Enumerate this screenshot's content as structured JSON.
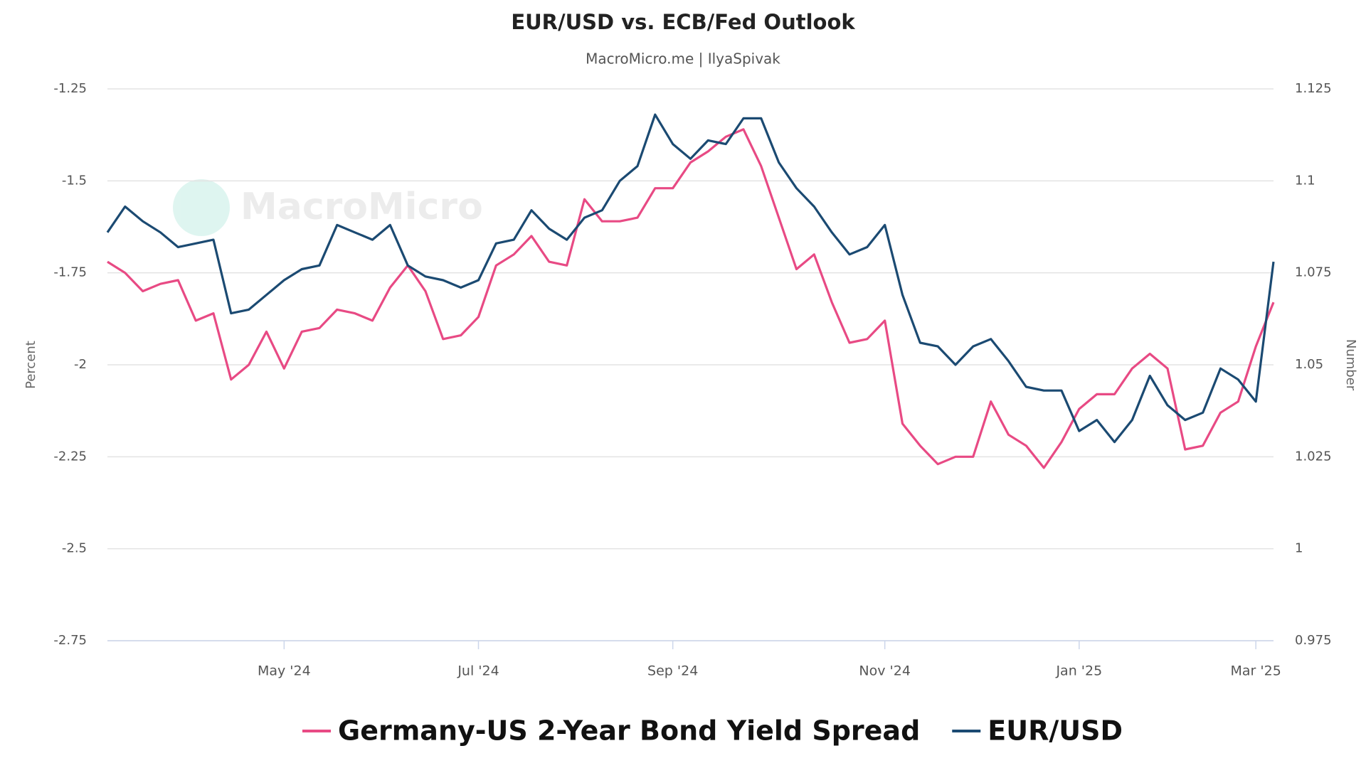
{
  "chart_data": {
    "type": "line",
    "title": "EUR/USD vs. ECB/Fed Outlook",
    "subtitle": "MacroMicro.me | IlyaSpivak",
    "annotations": [
      "MacroMicro"
    ],
    "y_label": "Percent",
    "y2_label": "Number",
    "categories": [
      null,
      null,
      null,
      null,
      null,
      null,
      null,
      null,
      null,
      null,
      "May '24",
      null,
      null,
      null,
      null,
      null,
      null,
      null,
      null,
      null,
      null,
      "Jul '24",
      null,
      null,
      null,
      null,
      null,
      null,
      null,
      null,
      null,
      null,
      "Sep '24",
      null,
      null,
      null,
      null,
      null,
      null,
      null,
      null,
      null,
      null,
      null,
      "Nov '24",
      null,
      null,
      null,
      null,
      null,
      null,
      null,
      null,
      null,
      null,
      "Jan '25",
      null,
      null,
      null,
      null,
      null,
      null,
      null,
      null,
      null,
      "Mar '25",
      null
    ],
    "series": [
      {
        "name": "Germany-US 2-Year Bond Yield Spread",
        "color": "#e84a84",
        "axis": "y",
        "values": [
          -1.72,
          -1.75,
          -1.8,
          -1.78,
          -1.77,
          -1.88,
          -1.86,
          -2.04,
          -2.0,
          -1.91,
          -2.01,
          -1.91,
          -1.9,
          -1.85,
          -1.86,
          -1.88,
          -1.79,
          -1.73,
          -1.8,
          -1.93,
          -1.92,
          -1.87,
          -1.73,
          -1.7,
          -1.65,
          -1.72,
          -1.73,
          -1.55,
          -1.61,
          -1.61,
          -1.6,
          -1.52,
          -1.52,
          -1.45,
          -1.42,
          -1.38,
          -1.36,
          -1.46,
          -1.6,
          -1.74,
          -1.7,
          -1.83,
          -1.94,
          -1.93,
          -1.88,
          -2.16,
          -2.22,
          -2.27,
          -2.25,
          -2.25,
          -2.1,
          -2.19,
          -2.22,
          -2.28,
          -2.21,
          -2.12,
          -2.08,
          -2.08,
          -2.01,
          -1.97,
          -2.01,
          -2.23,
          -2.22,
          -2.13,
          -2.1,
          -1.95,
          -1.83
        ]
      },
      {
        "name": "EUR/USD",
        "color": "#1b4a72",
        "axis": "y2",
        "values": [
          1.086,
          1.093,
          1.089,
          1.086,
          1.082,
          1.083,
          1.084,
          1.064,
          1.065,
          1.069,
          1.073,
          1.076,
          1.077,
          1.088,
          1.086,
          1.084,
          1.088,
          1.077,
          1.074,
          1.073,
          1.071,
          1.073,
          1.083,
          1.084,
          1.092,
          1.087,
          1.084,
          1.09,
          1.092,
          1.1,
          1.104,
          1.118,
          1.11,
          1.106,
          1.111,
          1.11,
          1.117,
          1.117,
          1.105,
          1.098,
          1.093,
          1.086,
          1.08,
          1.082,
          1.088,
          1.069,
          1.056,
          1.055,
          1.05,
          1.055,
          1.057,
          1.051,
          1.044,
          1.043,
          1.043,
          1.032,
          1.035,
          1.029,
          1.035,
          1.047,
          1.039,
          1.035,
          1.037,
          1.049,
          1.046,
          1.04,
          1.078
        ]
      }
    ],
    "ylim": [
      -2.75,
      -1.25
    ],
    "yticks": [
      -1.25,
      -1.5,
      -1.75,
      -2,
      -2.25,
      -2.5,
      -2.75
    ],
    "y2lim": [
      0.975,
      1.125
    ],
    "y2ticks": [
      1.125,
      1.1,
      1.075,
      1.05,
      1.025,
      1,
      0.975
    ],
    "grid": true
  }
}
